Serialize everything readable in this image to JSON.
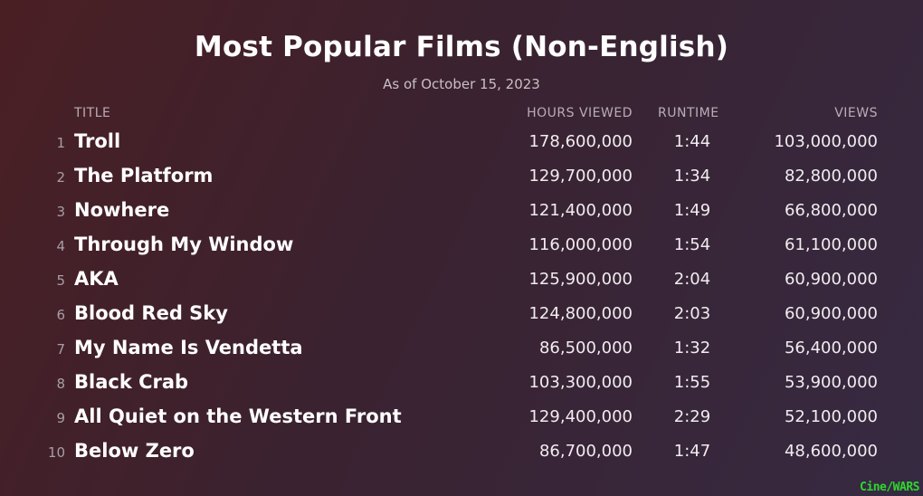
{
  "header": {
    "title": "Most Popular Films (Non-English)",
    "subtitle": "As of October 15, 2023"
  },
  "columns": {
    "title": "TITLE",
    "hours": "HOURS VIEWED",
    "runtime": "RUNTIME",
    "views": "VIEWS"
  },
  "chart_data": {
    "type": "table",
    "title": "Most Popular Films (Non-English)",
    "subtitle": "As of October 15, 2023",
    "columns": [
      "TITLE",
      "HOURS VIEWED",
      "RUNTIME",
      "VIEWS"
    ],
    "rows": [
      {
        "rank": "1",
        "title": "Troll",
        "hours": "178,600,000",
        "runtime": "1:44",
        "views": "103,000,000"
      },
      {
        "rank": "2",
        "title": "The Platform",
        "hours": "129,700,000",
        "runtime": "1:34",
        "views": "82,800,000"
      },
      {
        "rank": "3",
        "title": "Nowhere",
        "hours": "121,400,000",
        "runtime": "1:49",
        "views": "66,800,000"
      },
      {
        "rank": "4",
        "title": "Through My Window",
        "hours": "116,000,000",
        "runtime": "1:54",
        "views": "61,100,000"
      },
      {
        "rank": "5",
        "title": "AKA",
        "hours": "125,900,000",
        "runtime": "2:04",
        "views": "60,900,000"
      },
      {
        "rank": "6",
        "title": "Blood Red Sky",
        "hours": "124,800,000",
        "runtime": "2:03",
        "views": "60,900,000"
      },
      {
        "rank": "7",
        "title": "My Name Is Vendetta",
        "hours": "86,500,000",
        "runtime": "1:32",
        "views": "56,400,000"
      },
      {
        "rank": "8",
        "title": "Black Crab",
        "hours": "103,300,000",
        "runtime": "1:55",
        "views": "53,900,000"
      },
      {
        "rank": "9",
        "title": "All Quiet on the Western Front",
        "hours": "129,400,000",
        "runtime": "2:29",
        "views": "52,100,000"
      },
      {
        "rank": "10",
        "title": "Below Zero",
        "hours": "86,700,000",
        "runtime": "1:47",
        "views": "48,600,000"
      }
    ]
  },
  "watermark": "Cine/WARS",
  "colors": {
    "background_start": "#4a1f24",
    "background_end": "#362a42",
    "watermark": "#2fd62f"
  }
}
